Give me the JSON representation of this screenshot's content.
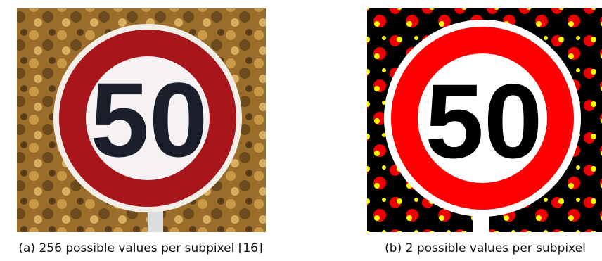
{
  "panels": [
    {
      "sign_text": "50",
      "caption": "(a) 256 possible values per subpixel [16]"
    },
    {
      "sign_text": "50",
      "caption": "(b) 2 possible values per subpixel"
    }
  ]
}
